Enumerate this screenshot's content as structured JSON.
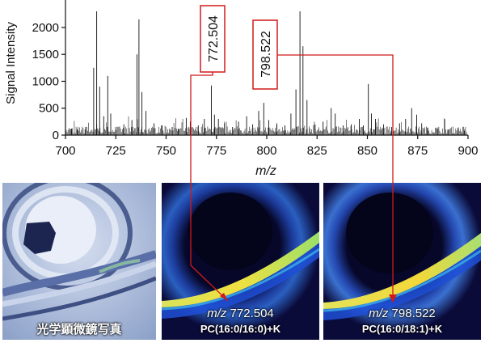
{
  "chart_data": {
    "type": "line",
    "ylabel": "Signal Intensity",
    "xlabel": "m/z",
    "xlim": [
      700,
      900
    ],
    "ylim": [
      0,
      2300
    ],
    "x_ticks": [
      700,
      725,
      750,
      775,
      800,
      825,
      850,
      875,
      900
    ],
    "y_ticks": [
      0,
      500,
      1000,
      1500,
      2000
    ],
    "grid": false,
    "peaks": [
      {
        "x": 703,
        "y": 120
      },
      {
        "x": 706,
        "y": 95
      },
      {
        "x": 710,
        "y": 150
      },
      {
        "x": 714,
        "y": 1250
      },
      {
        "x": 715.5,
        "y": 2300
      },
      {
        "x": 717,
        "y": 900
      },
      {
        "x": 719,
        "y": 350
      },
      {
        "x": 721,
        "y": 1100
      },
      {
        "x": 722.5,
        "y": 400
      },
      {
        "x": 729,
        "y": 200
      },
      {
        "x": 733,
        "y": 280
      },
      {
        "x": 735.5,
        "y": 1500
      },
      {
        "x": 736.5,
        "y": 2150
      },
      {
        "x": 738,
        "y": 800
      },
      {
        "x": 740,
        "y": 450
      },
      {
        "x": 744,
        "y": 220
      },
      {
        "x": 748,
        "y": 180
      },
      {
        "x": 753,
        "y": 150
      },
      {
        "x": 756,
        "y": 120
      },
      {
        "x": 760,
        "y": 320
      },
      {
        "x": 762,
        "y": 250
      },
      {
        "x": 766,
        "y": 180
      },
      {
        "x": 769,
        "y": 300
      },
      {
        "x": 772.5,
        "y": 920
      },
      {
        "x": 774,
        "y": 380
      },
      {
        "x": 776,
        "y": 300
      },
      {
        "x": 779,
        "y": 220
      },
      {
        "x": 783,
        "y": 150
      },
      {
        "x": 786,
        "y": 250
      },
      {
        "x": 790,
        "y": 350
      },
      {
        "x": 793,
        "y": 200
      },
      {
        "x": 796,
        "y": 450
      },
      {
        "x": 798.5,
        "y": 600
      },
      {
        "x": 801,
        "y": 280
      },
      {
        "x": 805,
        "y": 200
      },
      {
        "x": 809,
        "y": 180
      },
      {
        "x": 812,
        "y": 400
      },
      {
        "x": 814.5,
        "y": 850
      },
      {
        "x": 816.5,
        "y": 2300
      },
      {
        "x": 818,
        "y": 1650
      },
      {
        "x": 820,
        "y": 650
      },
      {
        "x": 824,
        "y": 200
      },
      {
        "x": 828,
        "y": 250
      },
      {
        "x": 832,
        "y": 500
      },
      {
        "x": 834,
        "y": 400
      },
      {
        "x": 838,
        "y": 180
      },
      {
        "x": 842,
        "y": 200
      },
      {
        "x": 846,
        "y": 300
      },
      {
        "x": 848,
        "y": 180
      },
      {
        "x": 850.5,
        "y": 950
      },
      {
        "x": 852,
        "y": 400
      },
      {
        "x": 854,
        "y": 300
      },
      {
        "x": 858,
        "y": 200
      },
      {
        "x": 862,
        "y": 150
      },
      {
        "x": 866,
        "y": 220
      },
      {
        "x": 869,
        "y": 300
      },
      {
        "x": 872,
        "y": 500
      },
      {
        "x": 874.5,
        "y": 380
      },
      {
        "x": 877,
        "y": 220
      },
      {
        "x": 880,
        "y": 140
      },
      {
        "x": 885,
        "y": 110
      },
      {
        "x": 890,
        "y": 100
      },
      {
        "x": 895,
        "y": 130
      },
      {
        "x": 898,
        "y": 80
      }
    ]
  },
  "callouts": [
    {
      "label": "772.504",
      "mz": 772.504
    },
    {
      "label": "798.522",
      "mz": 798.522
    }
  ],
  "panels": [
    {
      "caption": "光学顕微鏡写真"
    },
    {
      "mz_prefix": "m/z",
      "mz_value": "772.504",
      "lipid": "PC(16:0/16:0)+K"
    },
    {
      "mz_prefix": "m/z",
      "mz_value": "798.522",
      "lipid": "PC(16:0/18:1)+K"
    }
  ],
  "colors": {
    "annotation": "#d11a1a",
    "background_dark": "#07072a",
    "micro_background": "#b8c7e3"
  }
}
